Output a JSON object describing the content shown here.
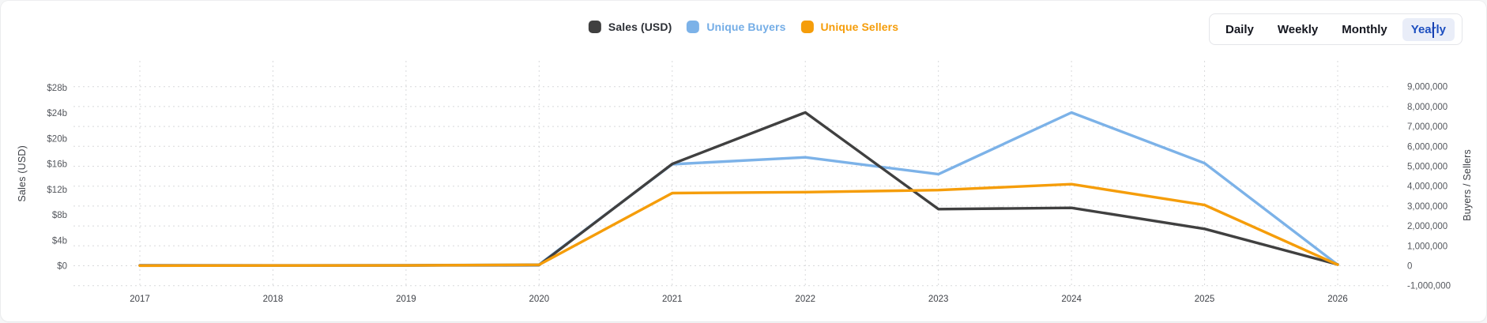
{
  "legend": {
    "position": "top",
    "items": [
      {
        "id": "sales-usd",
        "label": "Sales (USD)",
        "marker_color": "#404040",
        "label_color": "#2d3036"
      },
      {
        "id": "unique-buyers",
        "label": "Unique Buyers",
        "marker_color": "#7cb2e8",
        "label_color": "#74ade6"
      },
      {
        "id": "unique-sellers",
        "label": "Unique Sellers",
        "marker_color": "#f59d0a",
        "label_color": "#f59d0a"
      }
    ]
  },
  "range_selector": {
    "options": [
      "Daily",
      "Weekly",
      "Monthly",
      "Yearly"
    ],
    "selected": "Yearly",
    "selected_text_color": "#1d4fc0",
    "selected_bg_color": "#e9edf8",
    "has_text_cursor_in_selected": true
  },
  "chart_data": {
    "type": "line",
    "grid": "dotted",
    "grid_color": "#d8d9db",
    "legend_position": "top",
    "x": [
      2017,
      2018,
      2019,
      2020,
      2021,
      2022,
      2023,
      2024,
      2025,
      2026
    ],
    "x_axis": {
      "tick_labels": [
        "2017",
        "2018",
        "2019",
        "2020",
        "2021",
        "2022",
        "2023",
        "2024",
        "2025",
        "2026"
      ]
    },
    "left_axis": {
      "title": "Sales (USD)",
      "unit": "USD billions",
      "tick_labels": [
        "$0",
        "$4b",
        "$8b",
        "$12b",
        "$16b",
        "$20b",
        "$24b",
        "$28b"
      ],
      "tick_values_billions": [
        0,
        4,
        8,
        12,
        16,
        20,
        24,
        28
      ],
      "range_billions": [
        -1.3,
        31.7
      ]
    },
    "right_axis": {
      "title": "Buyers / Sellers",
      "tick_labels": [
        "-1,000,000",
        "0",
        "1,000,000",
        "2,000,000",
        "3,000,000",
        "4,000,000",
        "5,000,000",
        "6,000,000",
        "7,000,000",
        "8,000,000",
        "9,000,000"
      ],
      "tick_values": [
        -1000000,
        0,
        1000000,
        2000000,
        3000000,
        4000000,
        5000000,
        6000000,
        7000000,
        8000000,
        9000000
      ],
      "range": [
        -1000000,
        9000000
      ]
    },
    "series": [
      {
        "name": "Sales (USD)",
        "axis": "left",
        "unit": "USD billions",
        "color": "#404040",
        "values_billions_usd": [
          0.05,
          0.05,
          0.05,
          0.1,
          16.0,
          24.1,
          8.9,
          9.1,
          5.8,
          0.2
        ]
      },
      {
        "name": "Unique Buyers",
        "axis": "right",
        "unit": "count",
        "color": "#7cb2e8",
        "values": [
          10000,
          10000,
          20000,
          60000,
          5100000,
          5450000,
          4600000,
          7700000,
          5150000,
          50000
        ]
      },
      {
        "name": "Unique Sellers",
        "axis": "right",
        "unit": "count",
        "color": "#f59d0a",
        "values": [
          5000,
          10000,
          15000,
          50000,
          3650000,
          3700000,
          3800000,
          4100000,
          3050000,
          50000
        ]
      }
    ]
  }
}
